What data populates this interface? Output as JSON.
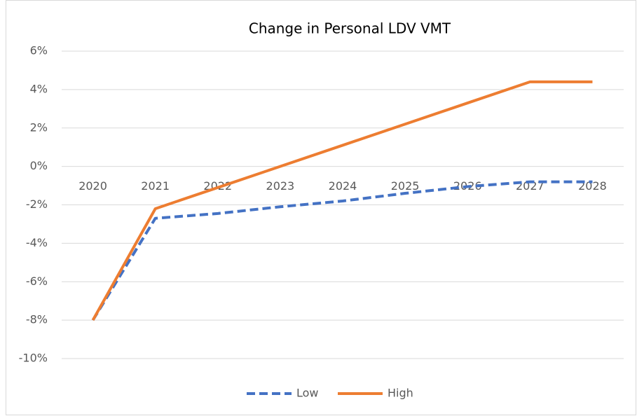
{
  "chart_data": {
    "type": "line",
    "title": "Change in Personal LDV VMT",
    "categories": [
      "2020",
      "2021",
      "2022",
      "2023",
      "2024",
      "2025",
      "2026",
      "2027",
      "2028"
    ],
    "series": [
      {
        "name": "Low",
        "color": "#4472c4",
        "dash": true,
        "values": [
          -8,
          -2.7,
          -2.45,
          -2.1,
          -1.8,
          -1.4,
          -1.05,
          -0.8,
          -0.8
        ]
      },
      {
        "name": "High",
        "color": "#ed7d31",
        "dash": false,
        "values": [
          -8,
          -2.2,
          -1.1,
          0,
          1.1,
          2.2,
          3.3,
          4.4,
          4.4
        ]
      }
    ],
    "ylim": [
      -10,
      6
    ],
    "yticks": [
      {
        "value": -10,
        "label": "-10%"
      },
      {
        "value": -8,
        "label": "-8%"
      },
      {
        "value": -6,
        "label": "-6%"
      },
      {
        "value": -4,
        "label": "-4%"
      },
      {
        "value": -2,
        "label": "-2%"
      },
      {
        "value": 0,
        "label": "0%"
      },
      {
        "value": 2,
        "label": "2%"
      },
      {
        "value": 4,
        "label": "4%"
      },
      {
        "value": 6,
        "label": "6%"
      }
    ],
    "grid": true,
    "legend": "bottom"
  }
}
